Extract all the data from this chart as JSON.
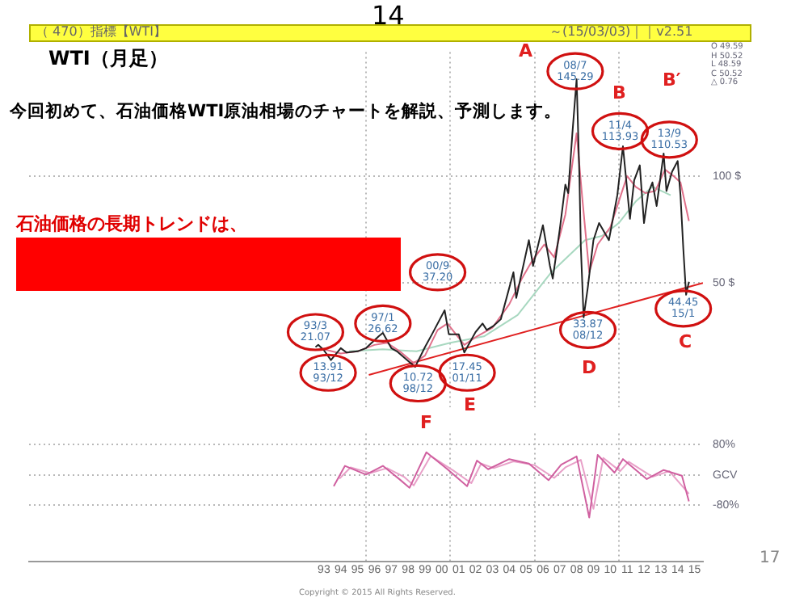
{
  "chart_data": [
    {
      "type": "line",
      "title": "WTI（月足）",
      "subtitle": "今回初めて、石油価格WTI原油相場のチャートを解説、予測します。",
      "annotations": [
        "14",
        "（ 470）指標【WTI】",
        "～(15/03/03)｜｜v2.51",
        "O 49.59\nH 50.52\nL 48.59\nC 50.52\n△ 0.76",
        "石油価格の長期トレンドは、",
        "Copyright © 2015 All Rights Reserved.",
        "17",
        "A",
        "B",
        "B′",
        "C",
        "D",
        "E",
        {
          "text": "93/3\n21.07",
          "x": "1993-01",
          "y": 27
        },
        {
          "text": "13.91\n93/12",
          "x": "1993-10",
          "y": 8
        },
        {
          "text": "97/1\n26.62",
          "x": "1997-01",
          "y": 31
        },
        {
          "text": "10.72\n98/12",
          "x": "1999-02",
          "y": 3
        },
        {
          "text": "00/9\n37.20",
          "x": "2000-04",
          "y": 55
        },
        {
          "text": "17.45\n01/11",
          "x": "2002-01",
          "y": 8
        },
        {
          "text": "08/7\n145.29",
          "x": "2008-06",
          "y": 149
        },
        {
          "text": "33.87\n08/12",
          "x": "2009-03",
          "y": 28
        },
        {
          "text": "11/4\n113.93",
          "x": "2011-02",
          "y": 121
        },
        {
          "text": "13/9\n110.53",
          "x": "2014-01",
          "y": 117
        },
        {
          "text": "44.45\n15/1",
          "x": "2014-11",
          "y": 38
        }
      ],
      "xlim": [
        "1976-01",
        "2016-01"
      ],
      "xticks": [
        {
          "value": "1996-01",
          "label": null
        },
        {
          "value": "2001-01",
          "label": null
        },
        {
          "value": "2006-01",
          "label": null
        },
        {
          "value": "2011-01",
          "label": null
        }
      ],
      "ylim": [
        -8,
        158
      ],
      "yticks": [
        {
          "value": 50,
          "label": "50 $"
        },
        {
          "value": 100,
          "label": "100 $"
        }
      ],
      "grid": true,
      "tick_labels": "y",
      "legend": false,
      "series": [
        {
          "color": "#222222",
          "x": [
            "1993-01",
            "1993-03",
            "1993-07",
            "1993-12",
            "1994-07",
            "1994-11",
            "1995-07",
            "1996-01",
            "1996-10",
            "1997-01",
            "1997-07",
            "1997-11",
            "1998-07",
            "1998-12",
            "1999-07",
            "1999-12",
            "2000-09",
            "2000-12",
            "2001-07",
            "2001-11",
            "2002-07",
            "2002-12",
            "2003-03",
            "2003-08",
            "2004-01",
            "2004-10",
            "2004-12",
            "2005-09",
            "2005-12",
            "2006-07",
            "2006-12",
            "2007-02",
            "2007-07",
            "2007-11",
            "2008-01",
            "2008-04",
            "2008-07",
            "2008-09",
            "2008-10",
            "2008-12",
            "2009-03",
            "2009-07",
            "2009-11",
            "2010-06",
            "2010-12",
            "2011-04",
            "2011-09",
            "2011-12",
            "2012-04",
            "2012-07",
            "2012-10",
            "2013-01",
            "2013-04",
            "2013-09",
            "2013-11",
            "2014-03",
            "2014-07",
            "2014-09",
            "2014-11",
            "2015-01",
            "2015-03"
          ],
          "values": [
            20,
            21.07,
            18.5,
            13.91,
            19.5,
            17.5,
            18,
            19.5,
            25,
            26.62,
            19.5,
            18,
            13.5,
            10.72,
            20,
            26,
            37.2,
            26,
            26,
            17.45,
            27,
            31,
            28,
            30,
            33,
            55,
            43,
            70,
            58,
            77,
            58,
            52,
            75,
            96,
            92,
            120,
            145.29,
            100,
            67,
            33.87,
            48,
            70,
            78,
            70,
            91,
            113.93,
            80,
            98,
            105,
            78,
            92,
            97,
            86,
            110.53,
            93,
            102,
            107,
            91,
            66,
            44.45,
            50.52
          ]
        },
        {
          "color": "#e0708a",
          "x": [
            "1993-07",
            "1994-07",
            "1995-07",
            "1996-07",
            "1997-04",
            "1998-01",
            "1998-11",
            "1999-07",
            "2000-04",
            "2000-11",
            "2001-11",
            "2002-08",
            "2003-07",
            "2004-07",
            "2005-04",
            "2005-11",
            "2006-08",
            "2007-03",
            "2007-11",
            "2008-07",
            "2008-11",
            "2009-04",
            "2009-10",
            "2010-07",
            "2011-01",
            "2011-07",
            "2012-01",
            "2012-08",
            "2013-03",
            "2013-10",
            "2014-04",
            "2014-09",
            "2015-01",
            "2015-03"
          ],
          "values": [
            19,
            17,
            18,
            21,
            22,
            18,
            12.5,
            16,
            28,
            31,
            21,
            25,
            29,
            40,
            52,
            60,
            68,
            62,
            82,
            120,
            90,
            55,
            68,
            76,
            88,
            100,
            95,
            92,
            93,
            103,
            100,
            97,
            85,
            79
          ]
        },
        {
          "color": "#a8d8c0",
          "x": [
            "1995-01",
            "1997-01",
            "1999-01",
            "2001-01",
            "2003-01",
            "2005-01",
            "2007-01",
            "2009-01",
            "2010-01",
            "2011-01",
            "2012-01",
            "2013-01",
            "2014-02"
          ],
          "values": [
            18,
            19,
            18,
            22,
            25,
            35,
            55,
            70,
            72,
            78,
            88,
            95,
            91
          ]
        },
        {
          "color": "#e02020",
          "x": [
            "1996-03",
            "2016-01"
          ],
          "values": [
            7,
            50
          ]
        }
      ]
    },
    {
      "type": "line",
      "annotations": [
        "F"
      ],
      "xlim": [
        "1976-01",
        "2016-01"
      ],
      "xticks": [
        {
          "value": "1993-07",
          "label": "93"
        },
        {
          "value": "1994-07",
          "label": "94"
        },
        {
          "value": "1995-07",
          "label": "95"
        },
        {
          "value": "1996-01",
          "label": null
        },
        {
          "value": "1996-07",
          "label": "96"
        },
        {
          "value": "1997-07",
          "label": "97"
        },
        {
          "value": "1998-07",
          "label": "98"
        },
        {
          "value": "1999-07",
          "label": "99"
        },
        {
          "value": "2000-07",
          "label": "00"
        },
        {
          "value": "2001-01",
          "label": null
        },
        {
          "value": "2001-07",
          "label": "01"
        },
        {
          "value": "2002-07",
          "label": "02"
        },
        {
          "value": "2003-07",
          "label": "03"
        },
        {
          "value": "2004-07",
          "label": "04"
        },
        {
          "value": "2005-07",
          "label": "05"
        },
        {
          "value": "2006-01",
          "label": null
        },
        {
          "value": "2006-07",
          "label": "06"
        },
        {
          "value": "2007-07",
          "label": "07"
        },
        {
          "value": "2008-07",
          "label": "08"
        },
        {
          "value": "2009-07",
          "label": "09"
        },
        {
          "value": "2010-07",
          "label": "10"
        },
        {
          "value": "2011-01",
          "label": null
        },
        {
          "value": "2011-07",
          "label": "11"
        },
        {
          "value": "2012-07",
          "label": "12"
        },
        {
          "value": "2013-07",
          "label": "13"
        },
        {
          "value": "2014-07",
          "label": "14"
        },
        {
          "value": "2015-07",
          "label": "15"
        }
      ],
      "ylim": [
        -230,
        110
      ],
      "yticks": [
        {
          "value": -80,
          "label": "-80%"
        },
        {
          "value": 0,
          "label": "GCV"
        },
        {
          "value": 80,
          "label": "80%"
        }
      ],
      "grid": true,
      "legend": false,
      "series": [
        {
          "color": "#d060a0",
          "x": [
            "1994-02",
            "1994-10",
            "1996-01",
            "1997-01",
            "1998-01",
            "1998-08",
            "1999-08",
            "2000-11",
            "2002-01",
            "2002-08",
            "2003-04",
            "2004-07",
            "2005-09",
            "2006-11",
            "2007-08",
            "2008-07",
            "2009-04",
            "2009-10",
            "2010-10",
            "2011-04",
            "2012-09",
            "2013-09",
            "2014-10",
            "2015-03"
          ],
          "values": [
            -30,
            24,
            1,
            24,
            -12,
            -34,
            60,
            15,
            -30,
            38,
            15,
            42,
            30,
            -14,
            27,
            49,
            -113,
            53,
            6,
            42,
            -11,
            13,
            -2,
            -70
          ]
        },
        {
          "color": "#e8a0c8",
          "x": [
            "1994-06",
            "1995-02",
            "1996-04",
            "1997-04",
            "1998-04",
            "1998-11",
            "1999-11",
            "2001-03",
            "2002-04",
            "2002-11",
            "2003-08",
            "2004-10",
            "2006-01",
            "2007-03",
            "2007-11",
            "2008-10",
            "2009-07",
            "2010-02",
            "2011-02",
            "2011-08",
            "2013-01",
            "2014-01",
            "2015-03"
          ],
          "values": [
            -10,
            20,
            5,
            18,
            -5,
            -28,
            50,
            12,
            -22,
            30,
            18,
            36,
            26,
            -8,
            20,
            40,
            -90,
            45,
            10,
            35,
            -5,
            10,
            -50
          ]
        }
      ]
    }
  ]
}
